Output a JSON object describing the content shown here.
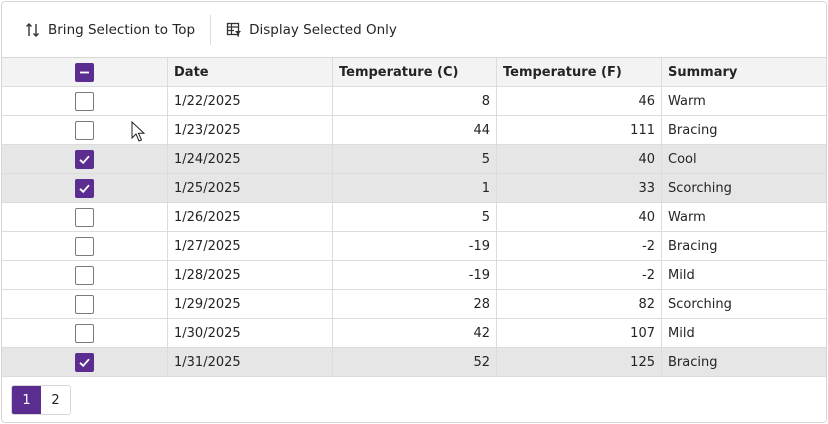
{
  "toolbar": {
    "bring_to_top_label": "Bring Selection to Top",
    "display_selected_label": "Display Selected Only"
  },
  "columns": {
    "select": "",
    "date": "Date",
    "temp_c": "Temperature (C)",
    "temp_f": "Temperature (F)",
    "summary": "Summary"
  },
  "header_checkbox_state": "partial",
  "rows": [
    {
      "selected": false,
      "date": "1/22/2025",
      "temp_c": "8",
      "temp_f": "46",
      "summary": "Warm"
    },
    {
      "selected": false,
      "date": "1/23/2025",
      "temp_c": "44",
      "temp_f": "111",
      "summary": "Bracing"
    },
    {
      "selected": true,
      "date": "1/24/2025",
      "temp_c": "5",
      "temp_f": "40",
      "summary": "Cool"
    },
    {
      "selected": true,
      "date": "1/25/2025",
      "temp_c": "1",
      "temp_f": "33",
      "summary": "Scorching"
    },
    {
      "selected": false,
      "date": "1/26/2025",
      "temp_c": "5",
      "temp_f": "40",
      "summary": "Warm"
    },
    {
      "selected": false,
      "date": "1/27/2025",
      "temp_c": "-19",
      "temp_f": "-2",
      "summary": "Bracing"
    },
    {
      "selected": false,
      "date": "1/28/2025",
      "temp_c": "-19",
      "temp_f": "-2",
      "summary": "Mild"
    },
    {
      "selected": false,
      "date": "1/29/2025",
      "temp_c": "28",
      "temp_f": "82",
      "summary": "Scorching"
    },
    {
      "selected": false,
      "date": "1/30/2025",
      "temp_c": "42",
      "temp_f": "107",
      "summary": "Mild"
    },
    {
      "selected": true,
      "date": "1/31/2025",
      "temp_c": "52",
      "temp_f": "125",
      "summary": "Bracing"
    }
  ],
  "pager": {
    "pages": [
      "1",
      "2"
    ],
    "current": "1"
  },
  "colors": {
    "accent": "#5b2d91",
    "selected_row": "#e6e6e6",
    "header_bg": "#f3f3f3"
  },
  "icons": {
    "bring_to_top": "sort-arrows-icon",
    "display_selected": "table-filter-icon",
    "checkmark": "checkmark-icon",
    "cursor": "mouse-pointer-icon"
  }
}
